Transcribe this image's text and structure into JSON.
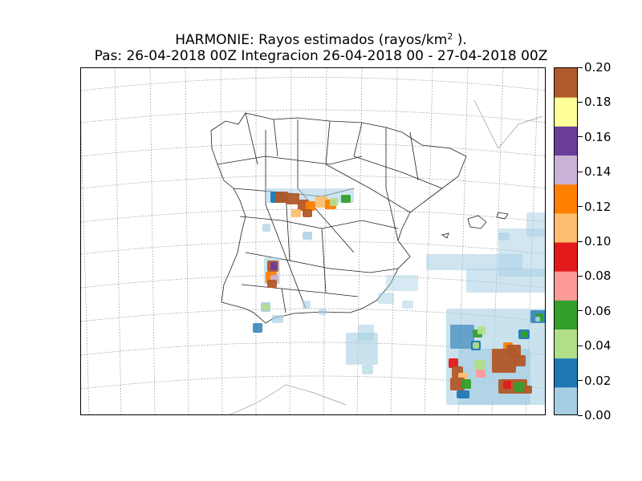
{
  "chart_data": {
    "type": "heatmap",
    "title_line1_prefix": "HARMONIE: Rayos estimados  (rayos/km",
    "title_line1_sup": "2",
    "title_line1_suffix": " ).",
    "title_line2": "Pas: 26-04-2018 00Z Integracion 26-04-2018 00 - 27-04-2018 00Z",
    "colorbar": {
      "min": 0.0,
      "max": 0.2,
      "ticks": [
        "0.00",
        "0.02",
        "0.04",
        "0.06",
        "0.08",
        "0.10",
        "0.12",
        "0.14",
        "0.16",
        "0.18",
        "0.20"
      ],
      "colors": [
        "#a6cee3",
        "#1f78b4",
        "#b2df8a",
        "#33a02c",
        "#fb9a99",
        "#e31a1c",
        "#fdbf6f",
        "#ff7f00",
        "#cab2d6",
        "#6a3d9a",
        "#ffff99",
        "#b15928"
      ]
    },
    "grid": "dotted lat/lon graticule",
    "basemap": "Iberian Peninsula with province boundaries and Balearic Islands",
    "high_activity_regions": [
      "north-west plateau (Zamora / Valladolid area)",
      "western border (Extremadura)",
      "south-east (Murcia / Almeria)"
    ]
  }
}
